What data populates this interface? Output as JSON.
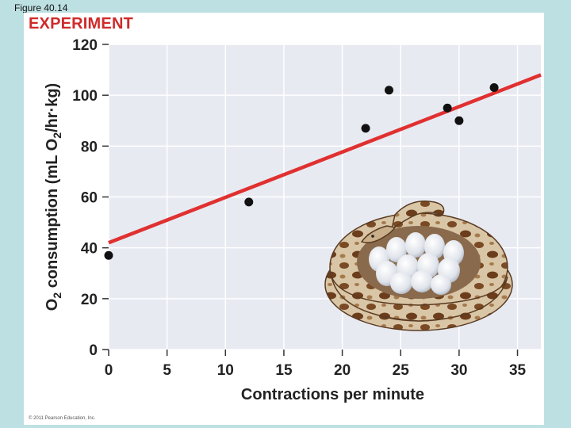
{
  "figure_label": "Figure 40.14",
  "heading": "EXPERIMENT",
  "copyright": "© 2011 Pearson Education, Inc.",
  "colors": {
    "background": "#bde0e2",
    "plot_area": "#e8eaf2",
    "heading": "#d02a2a",
    "trend": "#e03030",
    "points": "#111111"
  },
  "illustration": "python-coiled-around-eggs",
  "chart_data": {
    "type": "scatter",
    "title": "",
    "xlabel": "Contractions per minute",
    "ylabel_parts": [
      "O",
      "2",
      " consumption (mL O",
      "2",
      "/hr·kg)"
    ],
    "xlim": [
      0,
      37
    ],
    "ylim": [
      0,
      120
    ],
    "x_ticks": [
      0,
      5,
      10,
      15,
      20,
      25,
      30,
      35
    ],
    "y_ticks": [
      0,
      20,
      40,
      60,
      80,
      100,
      120
    ],
    "grid": true,
    "points": [
      {
        "x": 0,
        "y": 37
      },
      {
        "x": 12,
        "y": 58
      },
      {
        "x": 22,
        "y": 87
      },
      {
        "x": 24,
        "y": 102
      },
      {
        "x": 29,
        "y": 95
      },
      {
        "x": 30,
        "y": 90
      },
      {
        "x": 33,
        "y": 103
      }
    ],
    "trend_line": {
      "x": [
        0,
        37
      ],
      "y": [
        42,
        108
      ]
    }
  }
}
